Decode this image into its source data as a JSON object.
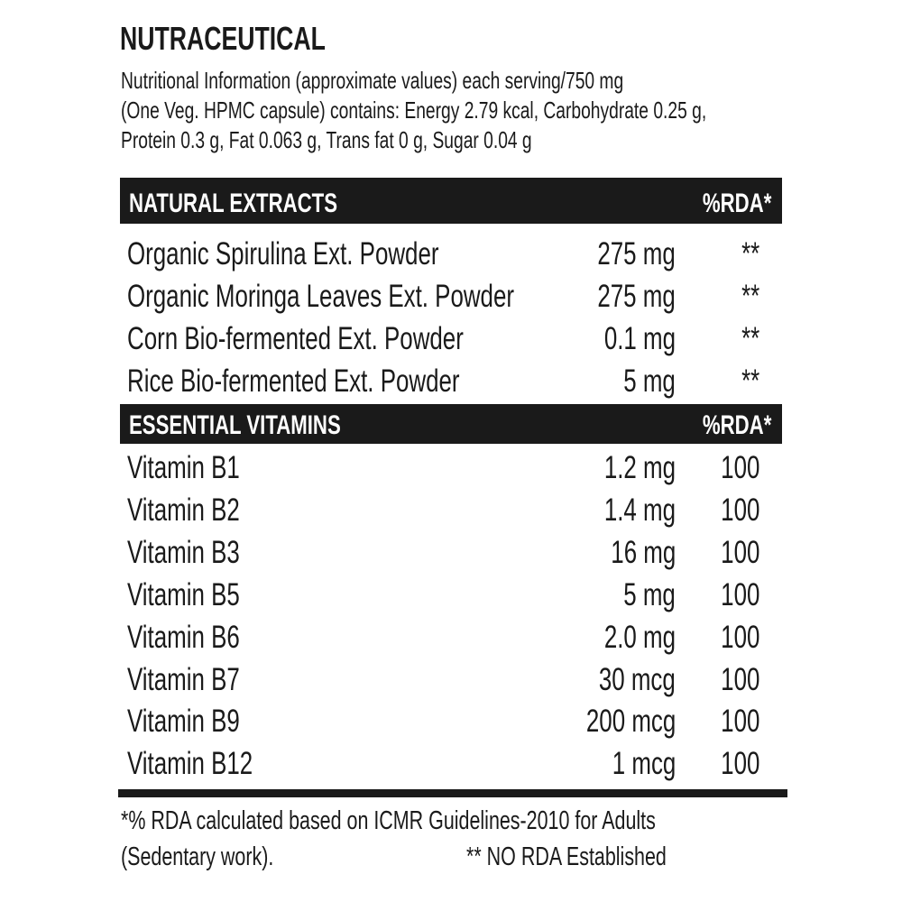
{
  "title": "NUTRACEUTICAL",
  "info_lines": [
    "Nutritional Information (approximate values) each serving/750 mg",
    "(One Veg. HPMC capsule) contains: Energy 2.79 kcal, Carbohydrate 0.25 g,",
    "Protein 0.3 g, Fat 0.063 g, Trans fat 0 g, Sugar 0.04 g"
  ],
  "natural_extracts": {
    "heading": "NATURAL EXTRACTS",
    "rda_heading": "%RDA*",
    "rows": [
      {
        "name": "Organic Spirulina Ext. Powder",
        "amount": "275 mg",
        "rda": "**"
      },
      {
        "name": "Organic Moringa Leaves Ext. Powder",
        "amount": "275 mg",
        "rda": "**"
      },
      {
        "name": "Corn Bio-fermented Ext. Powder",
        "amount": "0.1 mg",
        "rda": "**"
      },
      {
        "name": "Rice Bio-fermented Ext. Powder",
        "amount": "5 mg",
        "rda": "**"
      }
    ]
  },
  "essential_vitamins": {
    "heading": "ESSENTIAL VITAMINS",
    "rda_heading": "%RDA*",
    "rows": [
      {
        "name": "Vitamin B1",
        "amount": "1.2 mg",
        "rda": "100"
      },
      {
        "name": "Vitamin B2",
        "amount": "1.4 mg",
        "rda": "100"
      },
      {
        "name": "Vitamin B3",
        "amount": "16 mg",
        "rda": "100"
      },
      {
        "name": "Vitamin B5",
        "amount": "5 mg",
        "rda": "100"
      },
      {
        "name": "Vitamin B6",
        "amount": "2.0 mg",
        "rda": "100"
      },
      {
        "name": "Vitamin B7",
        "amount": "30 mcg",
        "rda": "100"
      },
      {
        "name": "Vitamin B9",
        "amount": "200 mcg",
        "rda": "100"
      },
      {
        "name": "Vitamin B12",
        "amount": "1 mcg",
        "rda": "100"
      }
    ]
  },
  "footnote": {
    "line1": "*% RDA calculated based on ICMR Guidelines-2010 for Adults",
    "line2": "(Sedentary work).",
    "no_rda": "** NO RDA Established"
  }
}
